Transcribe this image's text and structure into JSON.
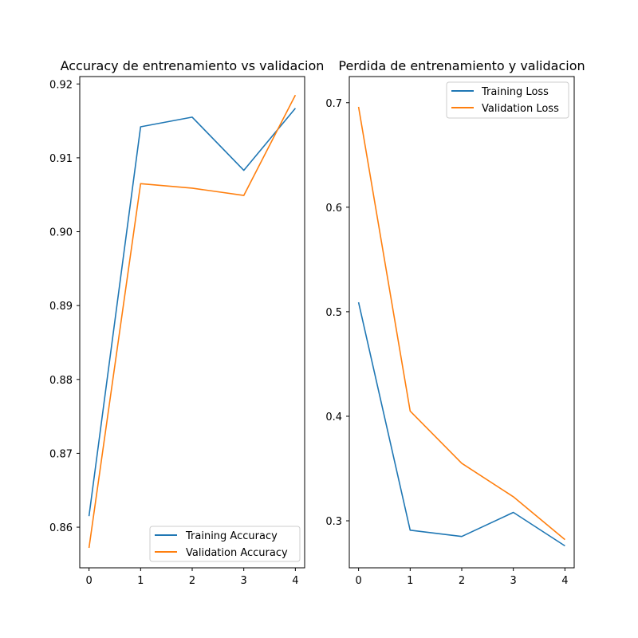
{
  "chart_data": [
    {
      "type": "line",
      "title": "Accuracy de entrenamiento vs validacion",
      "xlabel": "",
      "ylabel": "",
      "x": [
        0,
        1,
        2,
        3,
        4
      ],
      "xticks": [
        "0",
        "1",
        "2",
        "3",
        "4"
      ],
      "yticks": [
        "0.86",
        "0.87",
        "0.88",
        "0.89",
        "0.90",
        "0.91",
        "0.92"
      ],
      "ylim": [
        0.8545,
        0.921
      ],
      "legend_position": "lower-right",
      "grid": false,
      "series": [
        {
          "name": "Training Accuracy",
          "color": "#1f77b4",
          "values": [
            0.8615,
            0.9142,
            0.9155,
            0.9083,
            0.9167
          ]
        },
        {
          "name": "Validation Accuracy",
          "color": "#ff7f0e",
          "values": [
            0.8572,
            0.9065,
            0.9059,
            0.9049,
            0.9185
          ]
        }
      ]
    },
    {
      "type": "line",
      "title": "Perdida de entrenamiento y validacion",
      "xlabel": "",
      "ylabel": "",
      "x": [
        0,
        1,
        2,
        3,
        4
      ],
      "xticks": [
        "0",
        "1",
        "2",
        "3",
        "4"
      ],
      "yticks": [
        "0.3",
        "0.4",
        "0.5",
        "0.6",
        "0.7"
      ],
      "ylim": [
        0.255,
        0.725
      ],
      "legend_position": "upper-right",
      "grid": false,
      "series": [
        {
          "name": "Training Loss",
          "color": "#1f77b4",
          "values": [
            0.509,
            0.291,
            0.285,
            0.308,
            0.276
          ]
        },
        {
          "name": "Validation Loss",
          "color": "#ff7f0e",
          "values": [
            0.696,
            0.405,
            0.355,
            0.323,
            0.282
          ]
        }
      ]
    }
  ]
}
